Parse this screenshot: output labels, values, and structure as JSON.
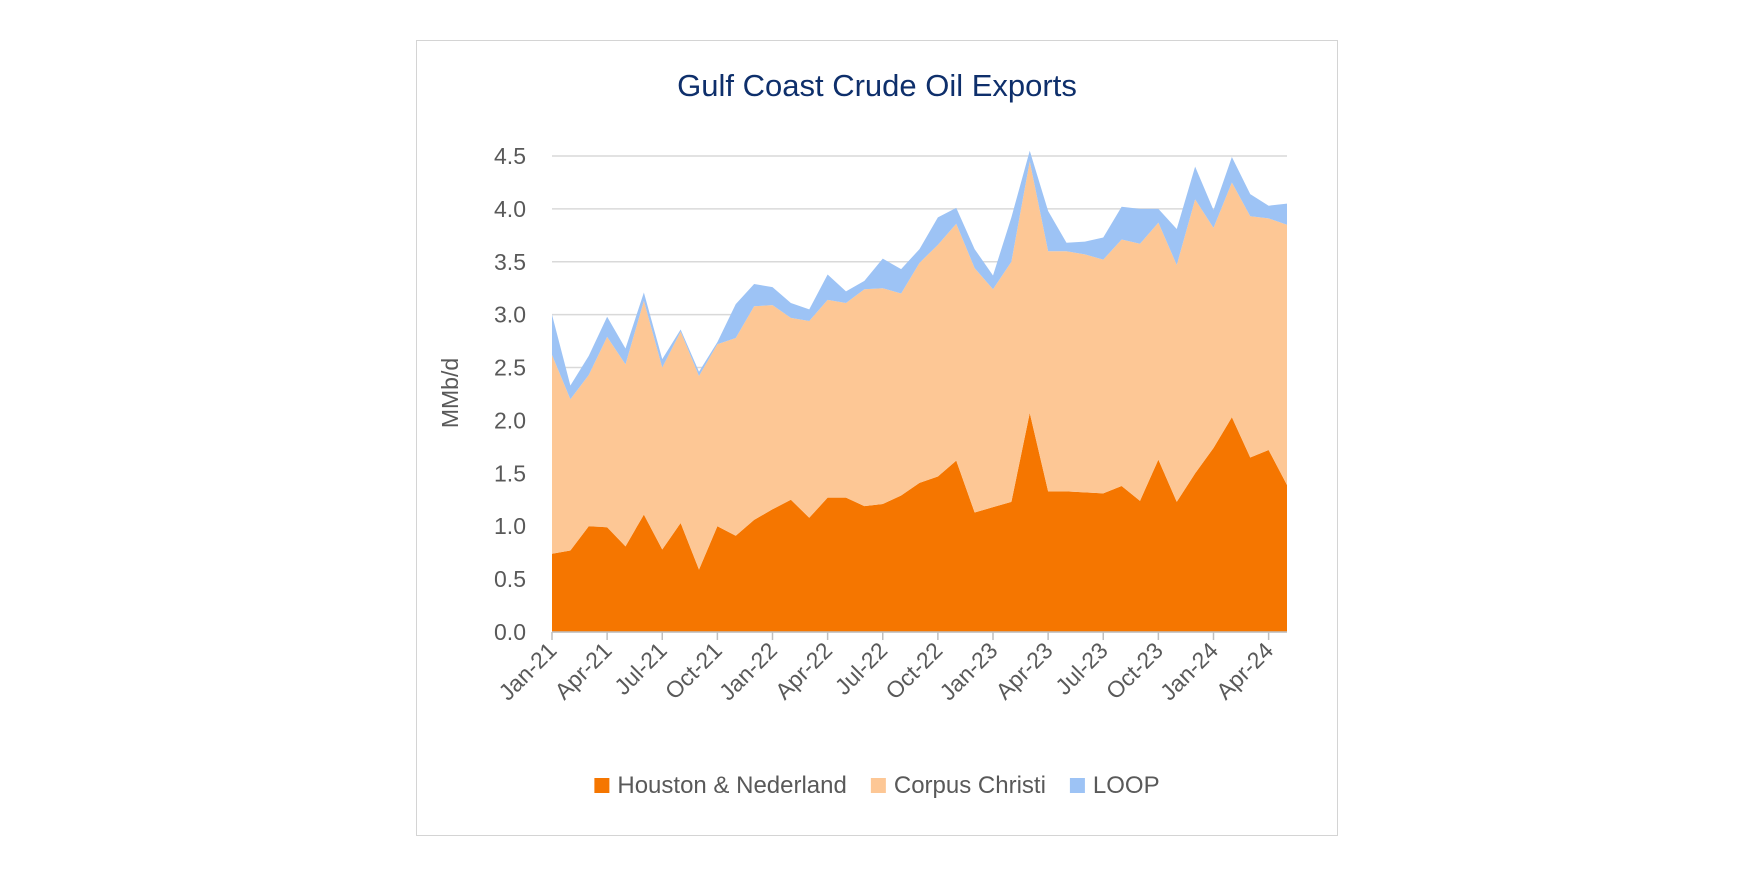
{
  "chart_data": {
    "type": "area",
    "stacked": true,
    "title": "Gulf Coast Crude Oil Exports",
    "xlabel": "",
    "ylabel": "MMb/d",
    "ylim": [
      0,
      4.5
    ],
    "yticks": [
      "0.0",
      "0.5",
      "1.0",
      "1.5",
      "2.0",
      "2.5",
      "3.0",
      "3.5",
      "4.0",
      "4.5"
    ],
    "grid": true,
    "legend_position": "bottom",
    "x": [
      "Jan-21",
      "Feb-21",
      "Mar-21",
      "Apr-21",
      "May-21",
      "Jun-21",
      "Jul-21",
      "Aug-21",
      "Sep-21",
      "Oct-21",
      "Nov-21",
      "Dec-21",
      "Jan-22",
      "Feb-22",
      "Mar-22",
      "Apr-22",
      "May-22",
      "Jun-22",
      "Jul-22",
      "Aug-22",
      "Sep-22",
      "Oct-22",
      "Nov-22",
      "Dec-22",
      "Jan-23",
      "Feb-23",
      "Mar-23",
      "Apr-23",
      "May-23",
      "Jun-23",
      "Jul-23",
      "Aug-23",
      "Sep-23",
      "Oct-23",
      "Nov-23",
      "Dec-23",
      "Jan-24",
      "Feb-24",
      "Mar-24",
      "Apr-24",
      "May-24"
    ],
    "x_tick_labels": [
      "Jan-21",
      "Apr-21",
      "Jul-21",
      "Oct-21",
      "Jan-22",
      "Apr-22",
      "Jul-22",
      "Oct-22",
      "Jan-23",
      "Apr-23",
      "Jul-23",
      "Oct-23",
      "Jan-24",
      "Apr-24"
    ],
    "series": [
      {
        "name": "Houston & Nederland",
        "color": "#f57600",
        "values": [
          0.74,
          0.77,
          1.0,
          0.99,
          0.81,
          1.11,
          0.78,
          1.03,
          0.59,
          1.0,
          0.91,
          1.06,
          1.16,
          1.25,
          1.08,
          1.27,
          1.27,
          1.19,
          1.21,
          1.29,
          1.41,
          1.47,
          1.62,
          1.13,
          1.18,
          1.23,
          2.07,
          1.33,
          1.33,
          1.32,
          1.31,
          1.38,
          1.24,
          1.63,
          1.23,
          1.5,
          1.74,
          2.03,
          1.65,
          1.72,
          1.39
        ]
      },
      {
        "name": "Corpus Christi",
        "color": "#fdc795",
        "values": [
          1.88,
          1.43,
          1.43,
          1.8,
          1.72,
          2.02,
          1.72,
          1.81,
          1.83,
          1.72,
          1.87,
          2.02,
          1.93,
          1.72,
          1.86,
          1.87,
          1.84,
          2.05,
          2.04,
          1.91,
          2.08,
          2.19,
          2.24,
          2.31,
          2.06,
          2.27,
          2.38,
          2.27,
          2.27,
          2.25,
          2.21,
          2.33,
          2.43,
          2.24,
          2.24,
          2.59,
          2.08,
          2.22,
          2.28,
          2.19,
          2.46
        ]
      },
      {
        "name": "LOOP",
        "color": "#9dc3f5",
        "values": [
          0.38,
          0.13,
          0.18,
          0.19,
          0.15,
          0.08,
          0.08,
          0.02,
          0.04,
          0.02,
          0.32,
          0.21,
          0.17,
          0.14,
          0.11,
          0.24,
          0.11,
          0.08,
          0.28,
          0.23,
          0.13,
          0.26,
          0.15,
          0.18,
          0.13,
          0.42,
          0.1,
          0.38,
          0.08,
          0.12,
          0.21,
          0.31,
          0.33,
          0.13,
          0.34,
          0.31,
          0.17,
          0.24,
          0.21,
          0.12,
          0.2
        ]
      }
    ]
  }
}
